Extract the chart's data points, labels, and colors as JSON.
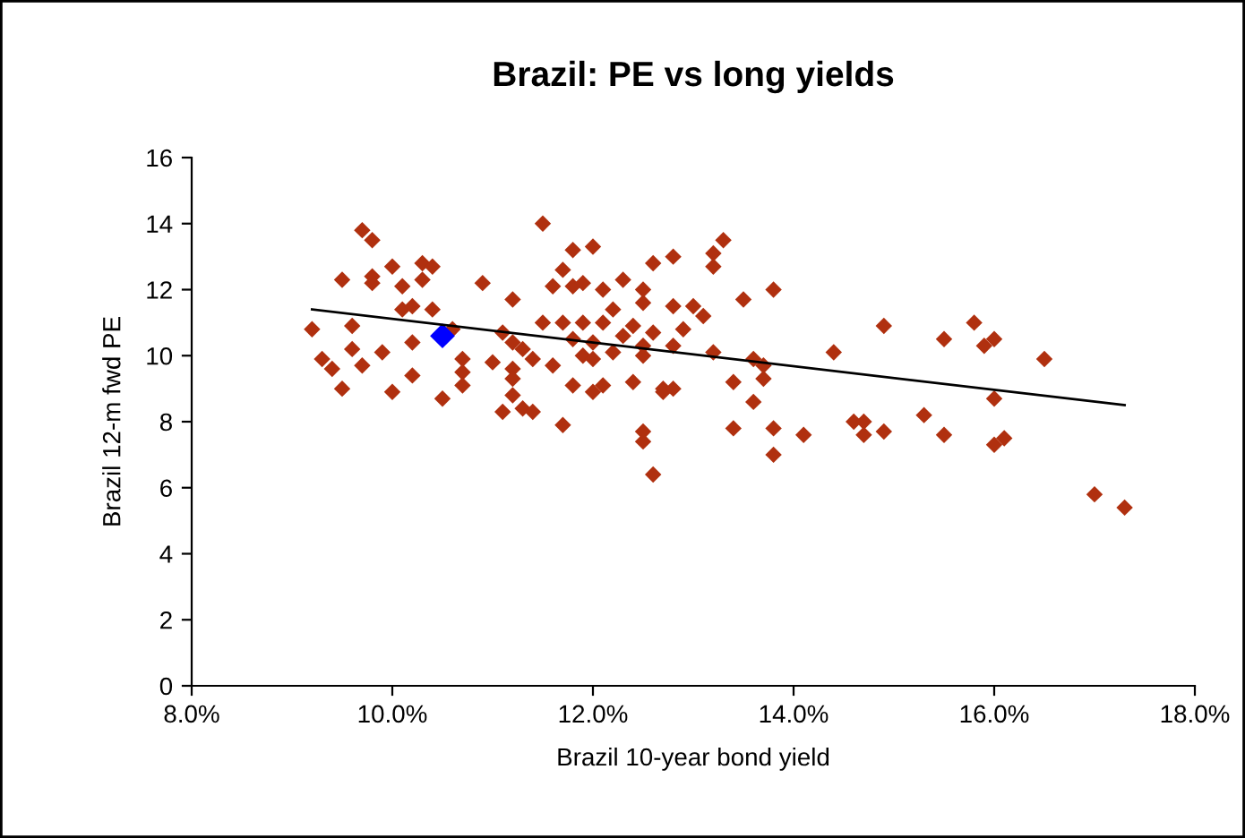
{
  "chart_data": {
    "type": "scatter",
    "title": "Brazil: PE vs long yields",
    "xlabel": "Brazil 10-year bond yield",
    "ylabel": "Brazil 12-m fwd PE",
    "marker": "diamond",
    "grid": false,
    "xlim": [
      8,
      18
    ],
    "xticks": [
      {
        "value": 8,
        "label": "8.0%"
      },
      {
        "value": 10,
        "label": "10.0%"
      },
      {
        "value": 12,
        "label": "12.0%"
      },
      {
        "value": 14,
        "label": "14.0%"
      },
      {
        "value": 16,
        "label": "16.0%"
      },
      {
        "value": 18,
        "label": "18.0%"
      }
    ],
    "ylim": [
      0,
      16
    ],
    "yticks": [
      0,
      2,
      4,
      6,
      8,
      10,
      12,
      14,
      16
    ],
    "series": [
      {
        "color": "#b0300f",
        "x": [
          9.2,
          9.3,
          9.4,
          9.5,
          9.5,
          9.6,
          9.6,
          9.7,
          9.7,
          9.8,
          9.8,
          9.8,
          9.9,
          10.0,
          10.0,
          10.1,
          10.1,
          10.2,
          10.2,
          10.2,
          10.3,
          10.3,
          10.4,
          10.4,
          10.5,
          10.6,
          10.7,
          10.7,
          10.7,
          10.9,
          11.0,
          11.1,
          11.1,
          11.2,
          11.2,
          11.2,
          11.2,
          11.3,
          11.2,
          11.3,
          11.4,
          11.4,
          11.5,
          11.5,
          11.6,
          11.6,
          11.7,
          11.7,
          11.7,
          11.8,
          11.8,
          11.8,
          11.8,
          11.9,
          11.9,
          11.9,
          12.0,
          12.0,
          12.0,
          12.0,
          12.1,
          12.1,
          12.1,
          12.2,
          12.2,
          12.3,
          12.3,
          12.4,
          12.4,
          12.5,
          12.5,
          12.5,
          12.5,
          12.5,
          12.5,
          12.6,
          12.6,
          12.6,
          12.7,
          12.7,
          12.8,
          12.8,
          12.8,
          12.8,
          12.9,
          13.0,
          13.1,
          13.2,
          13.2,
          13.2,
          13.3,
          13.4,
          13.4,
          13.5,
          13.6,
          13.6,
          13.7,
          13.8,
          13.7,
          13.8,
          13.8,
          14.1,
          14.4,
          14.6,
          14.7,
          14.7,
          14.9,
          14.9,
          15.3,
          15.5,
          15.5,
          15.8,
          15.9,
          16.0,
          16.0,
          16.0,
          16.1,
          16.5,
          17.0,
          17.3
        ],
        "values": [
          10.8,
          9.9,
          9.6,
          12.3,
          9.0,
          10.2,
          10.9,
          9.7,
          13.8,
          12.2,
          13.5,
          12.4,
          10.1,
          12.7,
          8.9,
          12.1,
          11.4,
          10.4,
          9.4,
          11.5,
          12.8,
          12.3,
          12.7,
          11.4,
          8.7,
          10.8,
          9.9,
          9.5,
          9.1,
          12.2,
          9.8,
          10.7,
          8.3,
          10.4,
          9.6,
          9.3,
          8.8,
          8.4,
          11.7,
          10.2,
          9.9,
          8.3,
          11.0,
          14.0,
          12.1,
          9.7,
          7.9,
          12.6,
          11.0,
          12.1,
          10.5,
          9.1,
          13.2,
          12.2,
          10.0,
          11.0,
          10.4,
          8.9,
          9.9,
          13.3,
          12.0,
          11.0,
          9.1,
          11.4,
          10.1,
          12.3,
          10.6,
          9.2,
          10.9,
          11.6,
          10.0,
          12.0,
          10.3,
          7.7,
          7.4,
          6.4,
          10.7,
          12.8,
          9.0,
          8.9,
          11.5,
          13.0,
          10.3,
          9.0,
          10.8,
          11.5,
          11.2,
          10.1,
          13.1,
          12.7,
          13.5,
          9.2,
          7.8,
          11.7,
          9.9,
          8.6,
          9.3,
          7.0,
          9.7,
          7.8,
          12.0,
          7.6,
          10.1,
          8.0,
          7.6,
          8.0,
          10.9,
          7.7,
          8.2,
          10.5,
          7.6,
          11.0,
          10.3,
          10.5,
          7.3,
          8.7,
          7.5,
          9.9,
          5.8,
          5.4
        ]
      },
      {
        "color": "#0000ff",
        "x": [
          10.5
        ],
        "values": [
          10.6
        ]
      },
      {
        "type": "line",
        "color": "#000000",
        "marker": "none",
        "x": [
          9.2,
          17.3
        ],
        "values": [
          11.4,
          8.5
        ]
      }
    ]
  }
}
